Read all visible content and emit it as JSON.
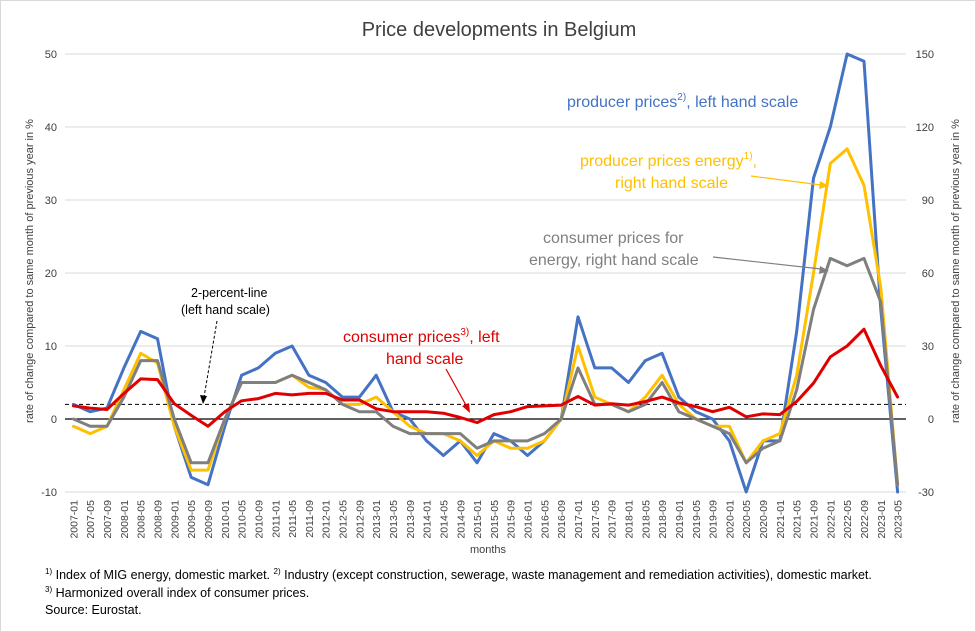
{
  "chart_data": {
    "type": "line",
    "title": "Price developments in Belgium",
    "xlabel": "months",
    "ylabel_left": "rate of change compared to same month of previous year in %",
    "ylabel_right": "rate of change compared to same month of previous year in %",
    "y_left": {
      "min": -10,
      "max": 50,
      "ticks": [
        -10,
        0,
        10,
        20,
        30,
        40,
        50
      ]
    },
    "y_right": {
      "min": -30,
      "max": 150,
      "ticks": [
        -30,
        0,
        30,
        60,
        90,
        120,
        150
      ]
    },
    "grid": "horizontal",
    "x_tick_labels": [
      "2007-01",
      "2007-05",
      "2007-09",
      "2008-01",
      "2008-05",
      "2008-09",
      "2009-01",
      "2009-05",
      "2009-09",
      "2010-01",
      "2010-05",
      "2010-09",
      "2011-01",
      "2011-05",
      "2011-09",
      "2012-01",
      "2012-05",
      "2012-09",
      "2013-01",
      "2013-05",
      "2013-09",
      "2014-01",
      "2014-05",
      "2014-09",
      "2015-01",
      "2015-05",
      "2015-09",
      "2016-01",
      "2016-05",
      "2016-09",
      "2017-01",
      "2017-05",
      "2017-09",
      "2018-01",
      "2018-05",
      "2018-09",
      "2019-01",
      "2019-05",
      "2019-09",
      "2020-01",
      "2020-05",
      "2020-09",
      "2021-01",
      "2021-05",
      "2021-09",
      "2022-01",
      "2022-05",
      "2022-09",
      "2023-01",
      "2023-05"
    ],
    "reference_line": {
      "name": "2-percent-line (left hand scale)",
      "value": 2,
      "axis": "left"
    },
    "series": [
      {
        "name": "producer prices, left hand scale",
        "axis": "left",
        "color": "#4472c4",
        "x": [
          "2007-01",
          "2007-05",
          "2007-09",
          "2008-01",
          "2008-05",
          "2008-09",
          "2009-01",
          "2009-05",
          "2009-09",
          "2010-01",
          "2010-05",
          "2010-09",
          "2011-01",
          "2011-05",
          "2011-09",
          "2012-01",
          "2012-05",
          "2012-09",
          "2013-01",
          "2013-05",
          "2013-09",
          "2014-01",
          "2014-05",
          "2014-09",
          "2015-01",
          "2015-05",
          "2015-09",
          "2016-01",
          "2016-05",
          "2016-09",
          "2017-01",
          "2017-05",
          "2017-09",
          "2018-01",
          "2018-05",
          "2018-09",
          "2019-01",
          "2019-05",
          "2019-09",
          "2020-01",
          "2020-05",
          "2020-09",
          "2021-01",
          "2021-05",
          "2021-09",
          "2022-01",
          "2022-05",
          "2022-09",
          "2023-01",
          "2023-05"
        ],
        "values": [
          2,
          1,
          1.5,
          7,
          12,
          11,
          -1,
          -8,
          -9,
          -1,
          6,
          7,
          9,
          10,
          6,
          5,
          3,
          3,
          6,
          1,
          0,
          -3,
          -5,
          -3,
          -6,
          -2,
          -3,
          -5,
          -3,
          0,
          14,
          7,
          7,
          5,
          8,
          9,
          3,
          1,
          0,
          -3,
          -10,
          -3,
          -3,
          12,
          33,
          40,
          50,
          49,
          15,
          -10
        ]
      },
      {
        "name": "producer prices energy, right hand scale",
        "axis": "right",
        "color": "#ffc000",
        "x": [
          "2007-01",
          "2007-05",
          "2007-09",
          "2008-01",
          "2008-05",
          "2008-09",
          "2009-01",
          "2009-05",
          "2009-09",
          "2010-01",
          "2010-05",
          "2010-09",
          "2011-01",
          "2011-05",
          "2011-09",
          "2012-01",
          "2012-05",
          "2012-09",
          "2013-01",
          "2013-05",
          "2013-09",
          "2014-01",
          "2014-05",
          "2014-09",
          "2015-01",
          "2015-05",
          "2015-09",
          "2016-01",
          "2016-05",
          "2016-09",
          "2017-01",
          "2017-05",
          "2017-09",
          "2018-01",
          "2018-05",
          "2018-09",
          "2019-01",
          "2019-05",
          "2019-09",
          "2020-01",
          "2020-05",
          "2020-09",
          "2021-01",
          "2021-05",
          "2021-09",
          "2022-01",
          "2022-05",
          "2022-09",
          "2023-01",
          "2023-05"
        ],
        "values": [
          -3,
          -6,
          -3,
          12,
          27,
          23,
          -3,
          -21,
          -21,
          0,
          15,
          15,
          15,
          18,
          13,
          12,
          6,
          6,
          9,
          3,
          -3,
          -6,
          -6,
          -9,
          -15,
          -9,
          -12,
          -12,
          -9,
          0,
          30,
          9,
          6,
          3,
          9,
          18,
          6,
          0,
          -3,
          -3,
          -18,
          -9,
          -6,
          18,
          60,
          105,
          111,
          96,
          54,
          -27
        ]
      },
      {
        "name": "consumer prices for energy, right hand scale",
        "axis": "right",
        "color": "#7f7f7f",
        "x": [
          "2007-01",
          "2007-05",
          "2007-09",
          "2008-01",
          "2008-05",
          "2008-09",
          "2009-01",
          "2009-05",
          "2009-09",
          "2010-01",
          "2010-05",
          "2010-09",
          "2011-01",
          "2011-05",
          "2011-09",
          "2012-01",
          "2012-05",
          "2012-09",
          "2013-01",
          "2013-05",
          "2013-09",
          "2014-01",
          "2014-05",
          "2014-09",
          "2015-01",
          "2015-05",
          "2015-09",
          "2016-01",
          "2016-05",
          "2016-09",
          "2017-01",
          "2017-05",
          "2017-09",
          "2018-01",
          "2018-05",
          "2018-09",
          "2019-01",
          "2019-05",
          "2019-09",
          "2020-01",
          "2020-05",
          "2020-09",
          "2021-01",
          "2021-05",
          "2021-09",
          "2022-01",
          "2022-05",
          "2022-09",
          "2023-01",
          "2023-05"
        ],
        "values": [
          0,
          -3,
          -3,
          9,
          24,
          24,
          0,
          -18,
          -18,
          0,
          15,
          15,
          15,
          18,
          15,
          12,
          6,
          3,
          3,
          -3,
          -6,
          -6,
          -6,
          -6,
          -12,
          -9,
          -9,
          -9,
          -6,
          0,
          21,
          6,
          6,
          3,
          6,
          15,
          3,
          0,
          -3,
          -6,
          -18,
          -12,
          -9,
          12,
          45,
          66,
          63,
          66,
          48,
          -27
        ]
      },
      {
        "name": "consumer prices, left hand scale",
        "axis": "left",
        "color": "#e00000",
        "x": [
          "2007-01",
          "2007-05",
          "2007-09",
          "2008-01",
          "2008-05",
          "2008-09",
          "2009-01",
          "2009-05",
          "2009-09",
          "2010-01",
          "2010-05",
          "2010-09",
          "2011-01",
          "2011-05",
          "2011-09",
          "2012-01",
          "2012-05",
          "2012-09",
          "2013-01",
          "2013-05",
          "2013-09",
          "2014-01",
          "2014-05",
          "2014-09",
          "2015-01",
          "2015-05",
          "2015-09",
          "2016-01",
          "2016-05",
          "2016-09",
          "2017-01",
          "2017-05",
          "2017-09",
          "2018-01",
          "2018-05",
          "2018-09",
          "2019-01",
          "2019-05",
          "2019-09",
          "2020-01",
          "2020-05",
          "2020-09",
          "2021-01",
          "2021-05",
          "2021-09",
          "2022-01",
          "2022-05",
          "2022-09",
          "2023-01",
          "2023-05"
        ],
        "values": [
          1.8,
          1.5,
          1.3,
          3.5,
          5.5,
          5.4,
          2.1,
          0.5,
          -1.0,
          1.0,
          2.5,
          2.8,
          3.5,
          3.3,
          3.5,
          3.5,
          2.6,
          2.6,
          1.4,
          1.0,
          1.0,
          1.0,
          0.8,
          0.2,
          -0.5,
          0.6,
          1.0,
          1.7,
          1.8,
          1.9,
          3.1,
          1.9,
          2.1,
          1.9,
          2.4,
          3.0,
          2.2,
          1.7,
          1.0,
          1.6,
          0.3,
          0.7,
          0.6,
          2.4,
          4.9,
          8.5,
          10.0,
          12.3,
          7.3,
          3.0
        ]
      }
    ],
    "annotations": {
      "producer": "producer prices",
      "producer_sup": "2)",
      "producer_tail": ", left hand scale",
      "energy_line1": "producer prices energy",
      "energy_sup": "1)",
      "energy_line1_tail": ",",
      "energy_line2": "right hand scale",
      "cons_energy_line1": "consumer prices for",
      "cons_energy_line2": "energy, right hand scale",
      "cons_line1": "consumer prices",
      "cons_sup": "3)",
      "cons_line1_tail": ", left",
      "cons_line2": "hand scale",
      "two_pct_line1": "2-percent-line",
      "two_pct_line2": "(left hand scale)"
    }
  },
  "footnotes": {
    "line1_sup_a": "1)",
    "line1_text_a": " Index of MIG energy, domestic market. ",
    "line1_sup_b": "2)",
    "line1_text_b": " Industry (except construction, sewerage, waste management and remediation activities), domestic market.",
    "line2_sup": "3)",
    "line2_text": " Harmonized overall index of consumer prices.",
    "line3": "Source: Eurostat."
  }
}
